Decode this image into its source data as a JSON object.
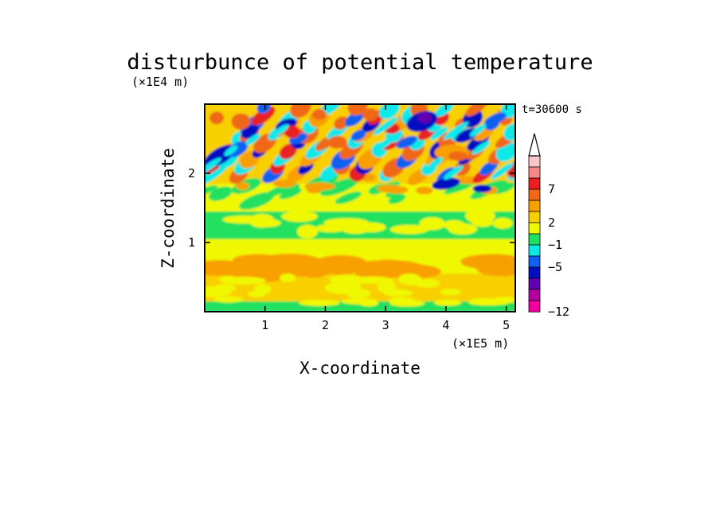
{
  "chart_data": {
    "type": "heatmap",
    "title": "disturbunce of potential temperature",
    "xlabel": "X-coordinate",
    "ylabel": "Z-coordinate",
    "x_unit": "(×1E5 m)",
    "y_unit": "(×1E4 m)",
    "time_label": "t=30600 s",
    "xlim": [
      0,
      5.15
    ],
    "ylim": [
      0,
      3.0
    ],
    "x_ticks": [
      1,
      2,
      3,
      4,
      5
    ],
    "y_ticks": [
      1,
      2
    ],
    "colorbar": {
      "labels": [
        {
          "value": 7,
          "text": "7"
        },
        {
          "value": 2,
          "text": "2"
        },
        {
          "value": -1,
          "text": "−1"
        },
        {
          "value": -5,
          "text": "−5"
        },
        {
          "value": -12,
          "text": "−12"
        }
      ],
      "levels": [
        {
          "color": "#f8c8c8"
        },
        {
          "color": "#f88888"
        },
        {
          "color": "#e82020"
        },
        {
          "color": "#f06818"
        },
        {
          "color": "#f8a000"
        },
        {
          "color": "#f8d000"
        },
        {
          "color": "#f0f800"
        },
        {
          "color": "#20e060"
        },
        {
          "color": "#10e8e8"
        },
        {
          "color": "#1060f0"
        },
        {
          "color": "#0010c0"
        },
        {
          "color": "#6000b0"
        },
        {
          "color": "#b000a0"
        },
        {
          "color": "#f000a0"
        }
      ]
    },
    "field_bands_by_height": [
      {
        "z_range": [
          0.0,
          0.15
        ],
        "dominant": "green/yellow mix"
      },
      {
        "z_range": [
          0.15,
          0.55
        ],
        "dominant": "yellow/orange"
      },
      {
        "z_range": [
          0.55,
          0.75
        ],
        "dominant": "orange"
      },
      {
        "z_range": [
          0.75,
          1.05
        ],
        "dominant": "yellow"
      },
      {
        "z_range": [
          1.05,
          1.45
        ],
        "dominant": "green"
      },
      {
        "z_range": [
          1.45,
          1.8
        ],
        "dominant": "yellow with orange"
      },
      {
        "z_range": [
          1.8,
          3.0
        ],
        "dominant": "wave pattern: orange/red and blue/cyan cells"
      }
    ]
  }
}
